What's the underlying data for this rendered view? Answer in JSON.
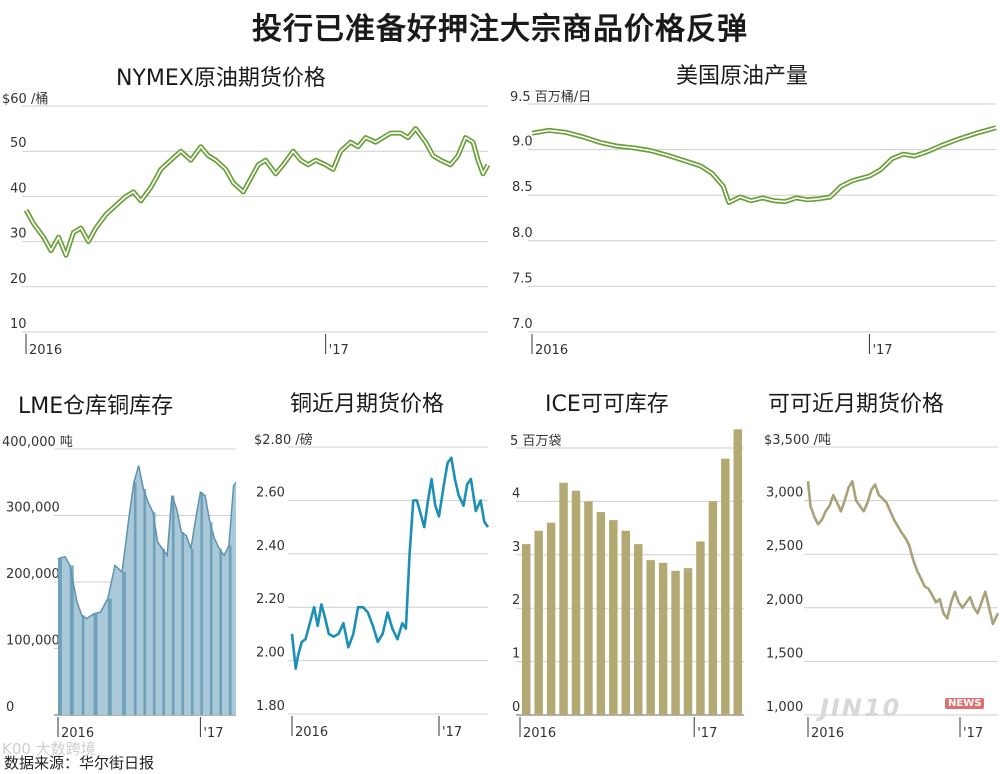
{
  "title": "投行已准备好押注大宗商品价格反弹",
  "footer": {
    "source": "数据来源：华尔街日报",
    "watermark_left": "K00 大数跨境",
    "watermark_right": "JIN10",
    "watermark_news": "NEWS"
  },
  "colors": {
    "green": "#6a9f3a",
    "blue_dark": "#5d93b0",
    "blue_light": "#a9c8d8",
    "teal": "#1d8fb4",
    "olive": "#b3aa73",
    "grid": "#cfcfcf",
    "cocoa_price": "#a9a279"
  },
  "chart_data": [
    {
      "id": "nymex",
      "type": "line",
      "title": "NYMEX原油期货价格",
      "unit": "$60 /桶",
      "y_ticks": [
        "50",
        "40",
        "30",
        "20",
        "10"
      ],
      "y_tick_values": [
        50,
        40,
        30,
        20,
        10
      ],
      "ylim": [
        10,
        60
      ],
      "x_ticks": [
        "2016",
        "'17"
      ],
      "x_tick_values": [
        0,
        12
      ],
      "xlim": [
        0,
        18.5
      ],
      "style": "double",
      "series": [
        {
          "values": [
            [
              0,
              37
            ],
            [
              0.3,
              34
            ],
            [
              0.7,
              31
            ],
            [
              1.0,
              28
            ],
            [
              1.3,
              31
            ],
            [
              1.6,
              27
            ],
            [
              1.9,
              32
            ],
            [
              2.2,
              33
            ],
            [
              2.5,
              30
            ],
            [
              2.8,
              33
            ],
            [
              3.2,
              36
            ],
            [
              3.6,
              38
            ],
            [
              4.0,
              40
            ],
            [
              4.3,
              41
            ],
            [
              4.6,
              39
            ],
            [
              5.0,
              42
            ],
            [
              5.4,
              46
            ],
            [
              5.8,
              48
            ],
            [
              6.2,
              50
            ],
            [
              6.6,
              48
            ],
            [
              7.0,
              51
            ],
            [
              7.3,
              49
            ],
            [
              7.6,
              48
            ],
            [
              8.0,
              46
            ],
            [
              8.3,
              43
            ],
            [
              8.7,
              41
            ],
            [
              9.0,
              44
            ],
            [
              9.3,
              47
            ],
            [
              9.6,
              48
            ],
            [
              10.0,
              45
            ],
            [
              10.3,
              47
            ],
            [
              10.7,
              50
            ],
            [
              11.0,
              48
            ],
            [
              11.3,
              47
            ],
            [
              11.6,
              48
            ],
            [
              12.0,
              47
            ],
            [
              12.3,
              46
            ],
            [
              12.6,
              50
            ],
            [
              13.0,
              52
            ],
            [
              13.3,
              51
            ],
            [
              13.6,
              53
            ],
            [
              14.0,
              52
            ],
            [
              14.3,
              53
            ],
            [
              14.6,
              54
            ],
            [
              15.0,
              54
            ],
            [
              15.3,
              53
            ],
            [
              15.6,
              55
            ],
            [
              16.0,
              52
            ],
            [
              16.3,
              49
            ],
            [
              16.6,
              48
            ],
            [
              17.0,
              47
            ],
            [
              17.3,
              49
            ],
            [
              17.6,
              53
            ],
            [
              17.9,
              52
            ],
            [
              18.1,
              48
            ],
            [
              18.3,
              45
            ],
            [
              18.5,
              47
            ]
          ]
        }
      ]
    },
    {
      "id": "us_oil",
      "type": "line",
      "title": "美国原油产量",
      "unit": "9.5 百万桶/日",
      "y_ticks": [
        "9.0",
        "8.5",
        "8.0",
        "7.5",
        "7.0"
      ],
      "y_tick_values": [
        9.0,
        8.5,
        8.0,
        7.5,
        7.0
      ],
      "ylim": [
        7.0,
        9.5
      ],
      "x_ticks": [
        "2016",
        "'17"
      ],
      "x_tick_values": [
        0,
        12
      ],
      "xlim": [
        0,
        16.5
      ],
      "style": "double",
      "series": [
        {
          "values": [
            [
              0,
              9.18
            ],
            [
              0.6,
              9.21
            ],
            [
              1.2,
              9.19
            ],
            [
              1.8,
              9.14
            ],
            [
              2.4,
              9.08
            ],
            [
              3.0,
              9.04
            ],
            [
              3.6,
              9.02
            ],
            [
              4.2,
              8.99
            ],
            [
              4.8,
              8.94
            ],
            [
              5.4,
              8.88
            ],
            [
              6.0,
              8.82
            ],
            [
              6.4,
              8.74
            ],
            [
              6.8,
              8.6
            ],
            [
              7.0,
              8.42
            ],
            [
              7.4,
              8.48
            ],
            [
              7.8,
              8.44
            ],
            [
              8.2,
              8.47
            ],
            [
              8.6,
              8.44
            ],
            [
              9.0,
              8.43
            ],
            [
              9.4,
              8.47
            ],
            [
              9.8,
              8.45
            ],
            [
              10.2,
              8.46
            ],
            [
              10.6,
              8.48
            ],
            [
              11.0,
              8.6
            ],
            [
              11.4,
              8.66
            ],
            [
              12.0,
              8.71
            ],
            [
              12.4,
              8.78
            ],
            [
              12.8,
              8.9
            ],
            [
              13.2,
              8.95
            ],
            [
              13.6,
              8.93
            ],
            [
              14.0,
              8.97
            ],
            [
              14.6,
              9.05
            ],
            [
              15.2,
              9.12
            ],
            [
              15.8,
              9.18
            ],
            [
              16.5,
              9.24
            ]
          ]
        }
      ]
    },
    {
      "id": "lme_copper",
      "type": "area",
      "title": "LME仓库铜库存",
      "unit": "400,000 吨",
      "y_ticks": [
        "300,000",
        "200,000",
        "100,000",
        "0"
      ],
      "y_tick_values": [
        300000,
        200000,
        100000,
        0
      ],
      "ylim": [
        0,
        400000
      ],
      "x_ticks": [
        "2016",
        "'17"
      ],
      "x_tick_values": [
        0,
        12
      ],
      "xlim": [
        0,
        15
      ],
      "style": "area",
      "series": [
        {
          "values": [
            [
              0,
              235000
            ],
            [
              0.6,
              238000
            ],
            [
              1.0,
              225000
            ],
            [
              1.6,
              170000
            ],
            [
              2.0,
              150000
            ],
            [
              2.4,
              145000
            ],
            [
              3.0,
              152000
            ],
            [
              3.6,
              155000
            ],
            [
              4.2,
              175000
            ],
            [
              4.8,
              225000
            ],
            [
              5.4,
              215000
            ],
            [
              6.0,
              300000
            ],
            [
              6.4,
              350000
            ],
            [
              6.8,
              375000
            ],
            [
              7.2,
              340000
            ],
            [
              7.6,
              320000
            ],
            [
              8.0,
              305000
            ],
            [
              8.4,
              260000
            ],
            [
              8.8,
              250000
            ],
            [
              9.2,
              240000
            ],
            [
              9.6,
              330000
            ],
            [
              10.0,
              310000
            ],
            [
              10.4,
              275000
            ],
            [
              10.8,
              270000
            ],
            [
              11.2,
              250000
            ],
            [
              11.6,
              295000
            ],
            [
              12.0,
              335000
            ],
            [
              12.4,
              330000
            ],
            [
              12.8,
              290000
            ],
            [
              13.2,
              265000
            ],
            [
              13.6,
              250000
            ],
            [
              14.0,
              240000
            ],
            [
              14.4,
              255000
            ],
            [
              14.8,
              345000
            ],
            [
              15,
              350000
            ]
          ]
        }
      ]
    },
    {
      "id": "copper_price",
      "type": "line",
      "title": "铜近月期货价格",
      "unit": "$2.80 /磅",
      "y_ticks": [
        "2.60",
        "2.40",
        "2.20",
        "2.00",
        "1.80"
      ],
      "y_tick_values": [
        2.6,
        2.4,
        2.2,
        2.0,
        1.8
      ],
      "ylim": [
        1.8,
        2.8
      ],
      "x_ticks": [
        "2016",
        "'17"
      ],
      "x_tick_values": [
        0,
        12
      ],
      "xlim": [
        0,
        16
      ],
      "style": "single",
      "series": [
        {
          "values": [
            [
              0,
              2.1
            ],
            [
              0.3,
              1.97
            ],
            [
              0.5,
              2.02
            ],
            [
              0.8,
              2.07
            ],
            [
              1.1,
              2.08
            ],
            [
              1.4,
              2.13
            ],
            [
              1.8,
              2.2
            ],
            [
              2.1,
              2.13
            ],
            [
              2.4,
              2.21
            ],
            [
              2.7,
              2.16
            ],
            [
              3.0,
              2.1
            ],
            [
              3.4,
              2.09
            ],
            [
              3.8,
              2.1
            ],
            [
              4.2,
              2.14
            ],
            [
              4.6,
              2.05
            ],
            [
              5.0,
              2.1
            ],
            [
              5.4,
              2.2
            ],
            [
              5.8,
              2.2
            ],
            [
              6.2,
              2.18
            ],
            [
              6.6,
              2.13
            ],
            [
              7.0,
              2.07
            ],
            [
              7.4,
              2.1
            ],
            [
              7.8,
              2.18
            ],
            [
              8.2,
              2.12
            ],
            [
              8.6,
              2.08
            ],
            [
              9.0,
              2.14
            ],
            [
              9.3,
              2.12
            ],
            [
              9.6,
              2.4
            ],
            [
              9.9,
              2.6
            ],
            [
              10.2,
              2.6
            ],
            [
              10.5,
              2.55
            ],
            [
              10.8,
              2.5
            ],
            [
              11.1,
              2.6
            ],
            [
              11.4,
              2.68
            ],
            [
              11.7,
              2.58
            ],
            [
              12.0,
              2.54
            ],
            [
              12.4,
              2.66
            ],
            [
              12.7,
              2.74
            ],
            [
              13.0,
              2.76
            ],
            [
              13.3,
              2.68
            ],
            [
              13.6,
              2.62
            ],
            [
              14.0,
              2.58
            ],
            [
              14.3,
              2.66
            ],
            [
              14.6,
              2.68
            ],
            [
              15.0,
              2.56
            ],
            [
              15.4,
              2.6
            ],
            [
              15.7,
              2.52
            ],
            [
              16,
              2.5
            ]
          ]
        }
      ]
    },
    {
      "id": "ice_cocoa",
      "type": "bar",
      "title": "ICE可可库存",
      "unit": "5 百万袋",
      "y_ticks": [
        "4",
        "3",
        "2",
        "1",
        "0"
      ],
      "y_tick_values": [
        4,
        3,
        2,
        1,
        0
      ],
      "ylim": [
        0,
        5
      ],
      "x_ticks": [
        "2016",
        "'17"
      ],
      "x_tick_values": [
        0,
        12
      ],
      "style": "bar",
      "values": [
        3.2,
        3.45,
        3.6,
        4.35,
        4.2,
        4.0,
        3.8,
        3.65,
        3.45,
        3.2,
        2.9,
        2.85,
        2.7,
        2.75,
        3.25,
        4.0,
        4.8,
        5.35
      ]
    },
    {
      "id": "cocoa_price",
      "type": "line",
      "title": "可可近月期货价格",
      "unit": "$3,500 /吨",
      "y_ticks": [
        "3,000",
        "2,500",
        "2,000",
        "1,500",
        "1,000"
      ],
      "y_tick_values": [
        3000,
        2500,
        2000,
        1500,
        1000
      ],
      "ylim": [
        1000,
        3500
      ],
      "x_ticks": [
        "2016",
        "'17"
      ],
      "x_tick_values": [
        0,
        12
      ],
      "xlim": [
        0,
        15
      ],
      "style": "single",
      "series": [
        {
          "values": [
            [
              0,
              3180
            ],
            [
              0.2,
              2950
            ],
            [
              0.5,
              2850
            ],
            [
              0.8,
              2780
            ],
            [
              1.1,
              2820
            ],
            [
              1.4,
              2900
            ],
            [
              1.7,
              2950
            ],
            [
              2.0,
              3050
            ],
            [
              2.3,
              2980
            ],
            [
              2.6,
              2900
            ],
            [
              2.9,
              3000
            ],
            [
              3.2,
              3120
            ],
            [
              3.5,
              3180
            ],
            [
              3.8,
              3000
            ],
            [
              4.1,
              2950
            ],
            [
              4.4,
              2900
            ],
            [
              4.7,
              2980
            ],
            [
              5.0,
              3100
            ],
            [
              5.3,
              3150
            ],
            [
              5.6,
              3050
            ],
            [
              5.9,
              3020
            ],
            [
              6.2,
              2980
            ],
            [
              6.5,
              2900
            ],
            [
              6.8,
              2820
            ],
            [
              7.1,
              2760
            ],
            [
              7.4,
              2700
            ],
            [
              7.7,
              2650
            ],
            [
              8.0,
              2580
            ],
            [
              8.3,
              2450
            ],
            [
              8.6,
              2350
            ],
            [
              8.9,
              2280
            ],
            [
              9.2,
              2200
            ],
            [
              9.5,
              2180
            ],
            [
              9.8,
              2120
            ],
            [
              10.1,
              2050
            ],
            [
              10.4,
              2080
            ],
            [
              10.7,
              1950
            ],
            [
              11.0,
              1900
            ],
            [
              11.3,
              2050
            ],
            [
              11.6,
              2150
            ],
            [
              11.9,
              2050
            ],
            [
              12.2,
              2000
            ],
            [
              12.5,
              2050
            ],
            [
              12.8,
              2100
            ],
            [
              13.1,
              2000
            ],
            [
              13.4,
              1950
            ],
            [
              13.7,
              2050
            ],
            [
              14.0,
              2150
            ],
            [
              14.3,
              2000
            ],
            [
              14.6,
              1850
            ],
            [
              15,
              1950
            ]
          ]
        }
      ]
    }
  ]
}
